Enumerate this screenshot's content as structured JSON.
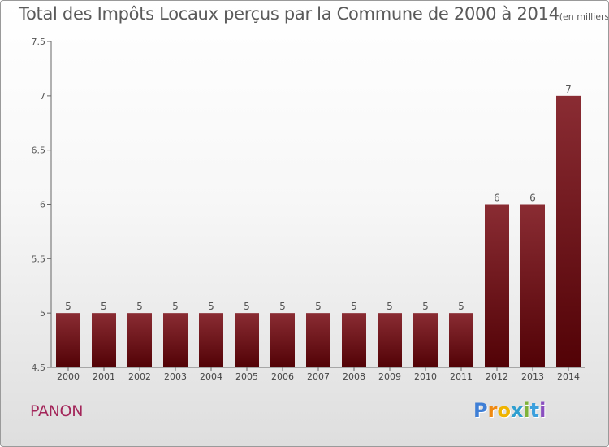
{
  "title": {
    "main": "Total des Impôts Locaux perçus par la Commune de 2000 à 2014",
    "unit": "(en milliers d'€)"
  },
  "commune": "PANON",
  "logo": {
    "text": "Proxiti",
    "letters": [
      "P",
      "r",
      "o",
      "x",
      "i",
      "t",
      "i"
    ],
    "colors": [
      "#3f7fd6",
      "#ef8a13",
      "#f0b400",
      "#2f9fd0",
      "#7fb23a",
      "#3ca0dd",
      "#8a4fbf"
    ]
  },
  "chart_data": {
    "type": "bar",
    "title": "Total des Impôts Locaux perçus par la Commune de 2000 à 2014",
    "xlabel": "",
    "ylabel": "",
    "categories": [
      "2000",
      "2001",
      "2002",
      "2003",
      "2004",
      "2005",
      "2006",
      "2007",
      "2008",
      "2009",
      "2010",
      "2011",
      "2012",
      "2013",
      "2014"
    ],
    "values": [
      5,
      5,
      5,
      5,
      5,
      5,
      5,
      5,
      5,
      5,
      5,
      5,
      6,
      6,
      7
    ],
    "value_labels": [
      "5",
      "5",
      "5",
      "5",
      "5",
      "5",
      "5",
      "5",
      "5",
      "5",
      "5",
      "5",
      "6",
      "6",
      "7"
    ],
    "ylim": [
      4.5,
      7.5
    ],
    "yticks": [
      4.5,
      5,
      5.5,
      6,
      6.5,
      7,
      7.5
    ],
    "ytick_labels": [
      "4.5",
      "5",
      "5.5",
      "6",
      "6.5",
      "7",
      "7.5"
    ],
    "bar_color": "#7a1218",
    "grid": false
  }
}
